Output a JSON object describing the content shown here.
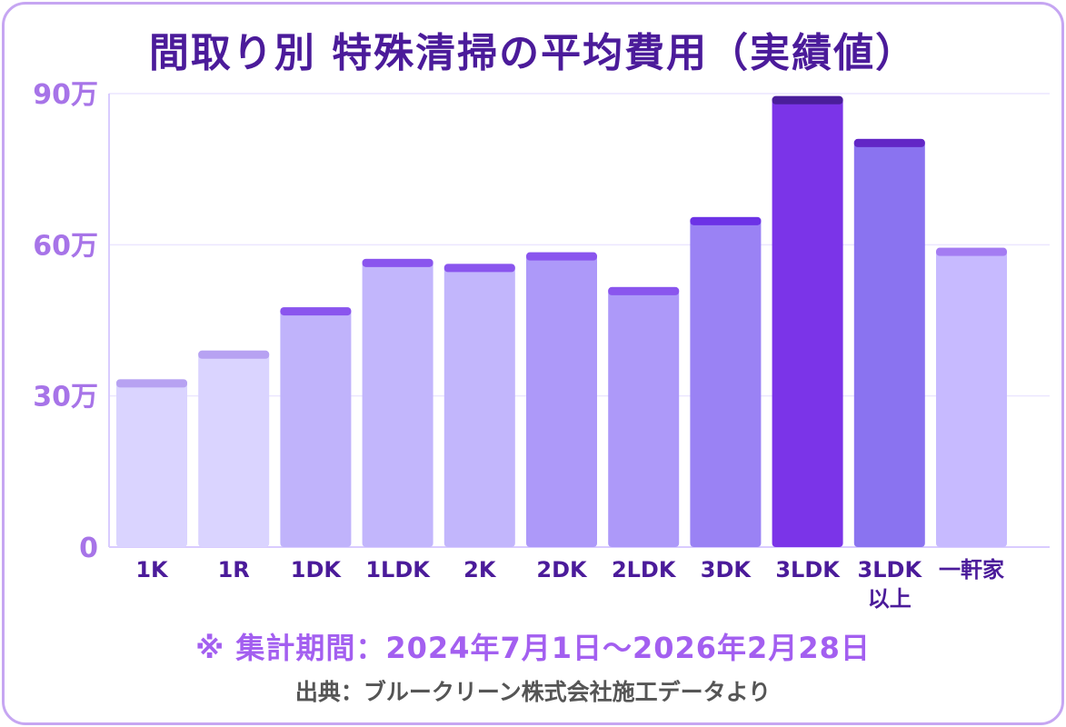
{
  "title": "間取り別 特殊清掃の平均費用（実績値）",
  "note": "※ 集計期間：2024年7月1日～2026年2月28日",
  "source": "出典：ブルークリーン株式会社施工データより",
  "colors": {
    "title": "#4b1b9a",
    "axis_label": "#a774e8",
    "note": "#a35ff0",
    "source": "#555555",
    "border": "#c6a6f2"
  },
  "chart_data": {
    "type": "bar",
    "title": "間取り別 特殊清掃の平均費用（実績値）",
    "xlabel": "",
    "ylabel": "",
    "ylim": [
      0,
      900000
    ],
    "y_ticks": [
      {
        "value": 0,
        "label": "0"
      },
      {
        "value": 300000,
        "label": "30万"
      },
      {
        "value": 600000,
        "label": "60万"
      },
      {
        "value": 900000,
        "label": "90万"
      }
    ],
    "grid": true,
    "categories": [
      "1K",
      "1R",
      "1DK",
      "1LDK",
      "2K",
      "2DK",
      "2LDK",
      "3DK",
      "3LDK",
      "3LDK以上",
      "一軒家"
    ],
    "category_labels": [
      [
        "1K"
      ],
      [
        "1R"
      ],
      [
        "1DK"
      ],
      [
        "1LDK"
      ],
      [
        "2K"
      ],
      [
        "2DK"
      ],
      [
        "2LDK"
      ],
      [
        "3DK"
      ],
      [
        "3LDK"
      ],
      [
        "3LDK",
        "以上"
      ],
      [
        "一軒家"
      ]
    ],
    "values": [
      333000,
      390000,
      476000,
      572000,
      562000,
      585000,
      516000,
      655000,
      895000,
      810000,
      594000
    ],
    "bar_colors": [
      "#dad4ff",
      "#dad4ff",
      "#c0b3fb",
      "#c2b6fc",
      "#c2b6fc",
      "#ad99f9",
      "#ad99f9",
      "#9a82f4",
      "#7b34e8",
      "#8a73f0",
      "#c7baff"
    ],
    "cap_colors": [
      "#b7a2f2",
      "#b7a2f2",
      "#8a55ee",
      "#8a55ee",
      "#8a55ee",
      "#8a55ee",
      "#8a55ee",
      "#6c32e6",
      "#4a1e9a",
      "#6226c6",
      "#a47cf2"
    ]
  }
}
